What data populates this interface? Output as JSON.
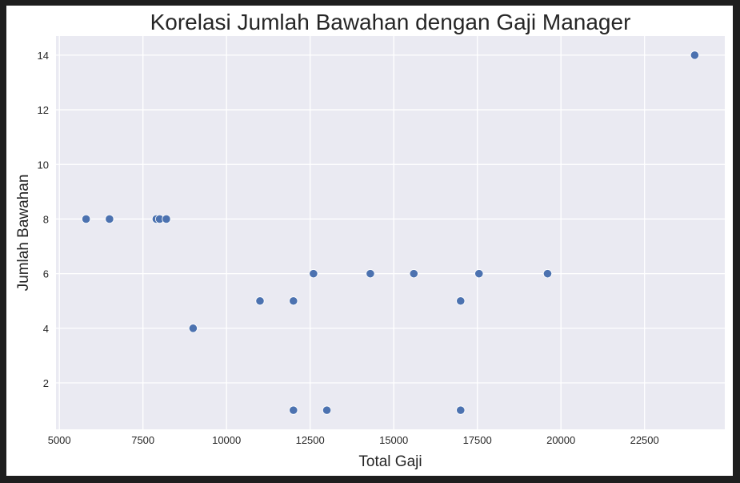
{
  "chart_data": {
    "type": "scatter",
    "title": "Korelasi Jumlah Bawahan dengan Gaji Manager",
    "xlabel": "Total Gaji",
    "ylabel": "Jumlah Bawahan",
    "xlim": [
      4900,
      24900
    ],
    "ylim": [
      0.3,
      14.7
    ],
    "grid": true,
    "xticks": [
      5000,
      7500,
      10000,
      12500,
      15000,
      17500,
      20000,
      22500
    ],
    "yticks": [
      2,
      4,
      6,
      8,
      10,
      12,
      14
    ],
    "points": [
      {
        "x": 5800,
        "y": 8
      },
      {
        "x": 6500,
        "y": 8
      },
      {
        "x": 7900,
        "y": 8
      },
      {
        "x": 8000,
        "y": 8
      },
      {
        "x": 8200,
        "y": 8
      },
      {
        "x": 9000,
        "y": 4
      },
      {
        "x": 11000,
        "y": 5
      },
      {
        "x": 12000,
        "y": 5
      },
      {
        "x": 12000,
        "y": 1
      },
      {
        "x": 12600,
        "y": 6
      },
      {
        "x": 13000,
        "y": 1
      },
      {
        "x": 14300,
        "y": 6
      },
      {
        "x": 15600,
        "y": 6
      },
      {
        "x": 17000,
        "y": 5
      },
      {
        "x": 17000,
        "y": 1
      },
      {
        "x": 17550,
        "y": 6
      },
      {
        "x": 19600,
        "y": 6
      },
      {
        "x": 24000,
        "y": 14
      }
    ],
    "colors": {
      "point": "#4c72b0",
      "background": "#eaeaf2",
      "grid": "#ffffff"
    }
  }
}
